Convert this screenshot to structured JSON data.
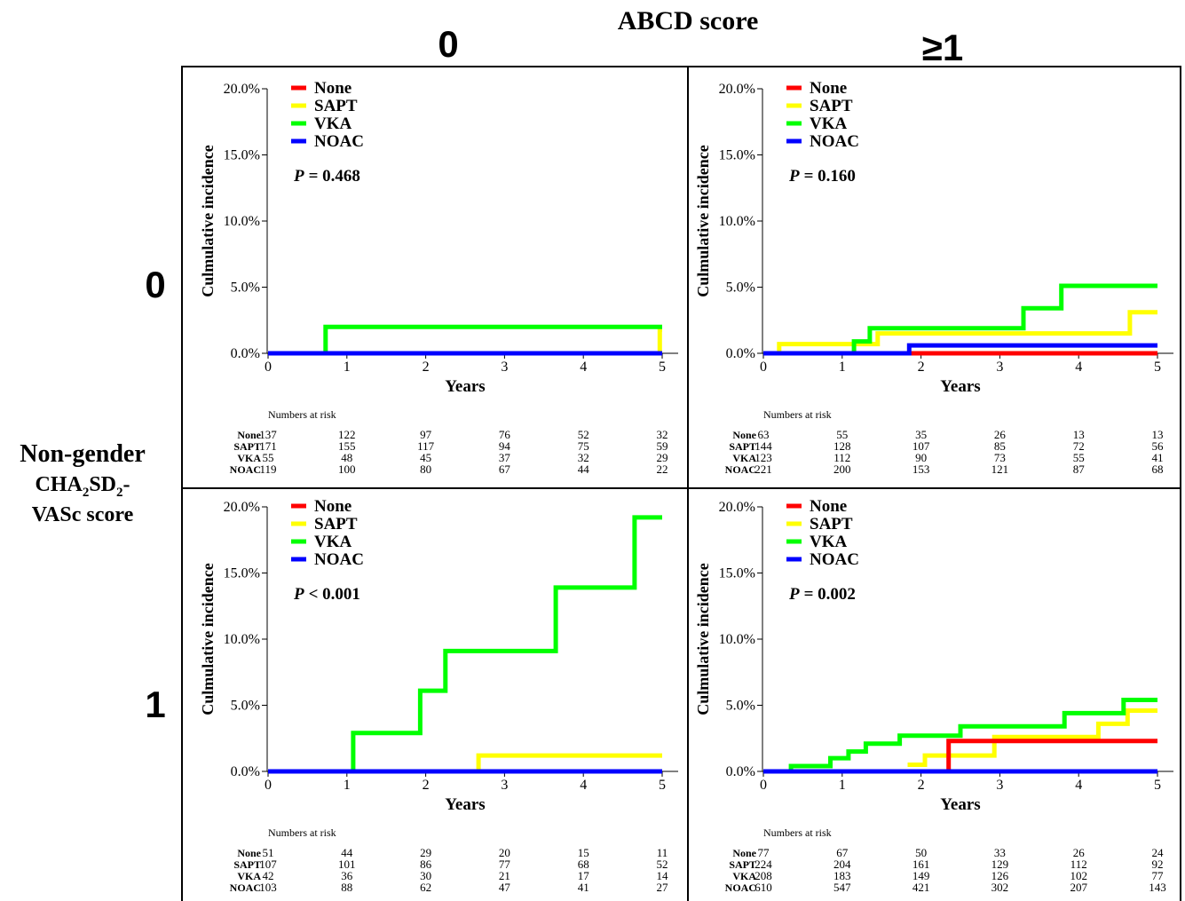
{
  "figure": {
    "column_header": "ABCD score",
    "column_labels": [
      "0",
      "≥1"
    ],
    "row_header_lines": [
      "Non-gender",
      "CHA2SD2-",
      "VASc score"
    ],
    "row_labels": [
      "0",
      "1"
    ]
  },
  "colors": {
    "None": "#ff0000",
    "SAPT": "#ffff00",
    "VKA": "#00ff00",
    "NOAC": "#0000ff"
  },
  "chart_data": [
    {
      "type": "line",
      "panel": "row 0, col 0",
      "xlabel": "Years",
      "ylabel": "Culmulative incidence",
      "xlim": [
        0,
        5
      ],
      "ylim": [
        0,
        20
      ],
      "xticks": [
        "0",
        "1",
        "2",
        "3",
        "4",
        "5"
      ],
      "yticks": [
        "0.0%",
        "5.0%",
        "10.0%",
        "15.0%",
        "20.0%"
      ],
      "pvalue": {
        "prefix": "P",
        "rest": "= 0.468"
      },
      "series": [
        {
          "name": "None",
          "points": [
            [
              0,
              0
            ],
            [
              5,
              0
            ]
          ]
        },
        {
          "name": "SAPT",
          "points": [
            [
              0,
              0
            ],
            [
              4.97,
              0
            ],
            [
              4.97,
              1.8
            ],
            [
              5,
              1.8
            ]
          ]
        },
        {
          "name": "VKA",
          "points": [
            [
              0,
              0
            ],
            [
              0.73,
              0
            ],
            [
              0.73,
              2.0
            ],
            [
              5,
              2.0
            ]
          ]
        },
        {
          "name": "NOAC",
          "points": [
            [
              0,
              0
            ],
            [
              5,
              0
            ]
          ]
        }
      ],
      "risk": {
        "title": "Numbers at risk",
        "rows": [
          {
            "label": "None",
            "values": [
              "137",
              "122",
              "97",
              "76",
              "52",
              "32"
            ]
          },
          {
            "label": "SAPT",
            "values": [
              "171",
              "155",
              "117",
              "94",
              "75",
              "59"
            ]
          },
          {
            "label": "VKA",
            "values": [
              "55",
              "48",
              "45",
              "37",
              "32",
              "29"
            ]
          },
          {
            "label": "NOAC",
            "values": [
              "119",
              "100",
              "80",
              "67",
              "44",
              "22"
            ]
          }
        ]
      }
    },
    {
      "type": "line",
      "panel": "row 0, col 1",
      "xlabel": "Years",
      "ylabel": "Culmulative incidence",
      "xlim": [
        0,
        5
      ],
      "ylim": [
        0,
        20
      ],
      "xticks": [
        "0",
        "1",
        "2",
        "3",
        "4",
        "5"
      ],
      "yticks": [
        "0.0%",
        "5.0%",
        "10.0%",
        "15.0%",
        "20.0%"
      ],
      "pvalue": {
        "prefix": "P",
        "rest": "= 0.160"
      },
      "series": [
        {
          "name": "None",
          "points": [
            [
              0,
              0
            ],
            [
              5,
              0
            ]
          ]
        },
        {
          "name": "SAPT",
          "points": [
            [
              0,
              0
            ],
            [
              0.2,
              0
            ],
            [
              0.2,
              0.7
            ],
            [
              1.45,
              0.7
            ],
            [
              1.45,
              1.5
            ],
            [
              4.65,
              1.5
            ],
            [
              4.65,
              3.1
            ],
            [
              5,
              3.1
            ]
          ]
        },
        {
          "name": "VKA",
          "points": [
            [
              0,
              0
            ],
            [
              1.15,
              0
            ],
            [
              1.15,
              0.9
            ],
            [
              1.35,
              0.9
            ],
            [
              1.35,
              1.9
            ],
            [
              3.3,
              1.9
            ],
            [
              3.3,
              3.4
            ],
            [
              3.78,
              3.4
            ],
            [
              3.78,
              5.1
            ],
            [
              5,
              5.1
            ]
          ]
        },
        {
          "name": "NOAC",
          "points": [
            [
              0,
              0
            ],
            [
              1.85,
              0
            ],
            [
              1.85,
              0.6
            ],
            [
              5,
              0.6
            ]
          ]
        }
      ],
      "risk": {
        "title": "Numbers at risk",
        "rows": [
          {
            "label": "None",
            "values": [
              "63",
              "55",
              "35",
              "26",
              "13",
              "13"
            ]
          },
          {
            "label": "SAPT",
            "values": [
              "144",
              "128",
              "107",
              "85",
              "72",
              "56"
            ]
          },
          {
            "label": "VKA",
            "values": [
              "123",
              "112",
              "90",
              "73",
              "55",
              "41"
            ]
          },
          {
            "label": "NOAC",
            "values": [
              "221",
              "200",
              "153",
              "121",
              "87",
              "68"
            ]
          }
        ]
      }
    },
    {
      "type": "line",
      "panel": "row 1, col 0",
      "xlabel": "Years",
      "ylabel": "Culmulative incidence",
      "xlim": [
        0,
        5
      ],
      "ylim": [
        0,
        20
      ],
      "xticks": [
        "0",
        "1",
        "2",
        "3",
        "4",
        "5"
      ],
      "yticks": [
        "0.0%",
        "5.0%",
        "10.0%",
        "15.0%",
        "20.0%"
      ],
      "pvalue": {
        "prefix": "P",
        "rest": "< 0.001"
      },
      "series": [
        {
          "name": "None",
          "points": [
            [
              0,
              0
            ],
            [
              5,
              0
            ]
          ]
        },
        {
          "name": "SAPT",
          "points": [
            [
              0,
              0
            ],
            [
              2.67,
              0
            ],
            [
              2.67,
              1.2
            ],
            [
              5,
              1.2
            ]
          ]
        },
        {
          "name": "VKA",
          "points": [
            [
              0,
              0
            ],
            [
              1.08,
              0
            ],
            [
              1.08,
              2.9
            ],
            [
              1.93,
              2.9
            ],
            [
              1.93,
              6.1
            ],
            [
              2.25,
              6.1
            ],
            [
              2.25,
              9.1
            ],
            [
              3.65,
              9.1
            ],
            [
              3.65,
              13.9
            ],
            [
              4.65,
              13.9
            ],
            [
              4.65,
              19.2
            ],
            [
              5,
              19.2
            ]
          ]
        },
        {
          "name": "NOAC",
          "points": [
            [
              0,
              0
            ],
            [
              5,
              0
            ]
          ]
        }
      ],
      "risk": {
        "title": "Numbers at risk",
        "rows": [
          {
            "label": "None",
            "values": [
              "51",
              "44",
              "29",
              "20",
              "15",
              "11"
            ]
          },
          {
            "label": "SAPT",
            "values": [
              "107",
              "101",
              "86",
              "77",
              "68",
              "52"
            ]
          },
          {
            "label": "VKA",
            "values": [
              "42",
              "36",
              "30",
              "21",
              "17",
              "14"
            ]
          },
          {
            "label": "NOAC",
            "values": [
              "103",
              "88",
              "62",
              "47",
              "41",
              "27"
            ]
          }
        ]
      }
    },
    {
      "type": "line",
      "panel": "row 1, col 1",
      "xlabel": "Years",
      "ylabel": "Culmulative incidence",
      "xlim": [
        0,
        5
      ],
      "ylim": [
        0,
        20
      ],
      "xticks": [
        "0",
        "1",
        "2",
        "3",
        "4",
        "5"
      ],
      "yticks": [
        "0.0%",
        "5.0%",
        "10.0%",
        "15.0%",
        "20.0%"
      ],
      "pvalue": {
        "prefix": "P",
        "rest": "= 0.002"
      },
      "series": [
        {
          "name": "None",
          "points": [
            [
              0,
              0
            ],
            [
              2.35,
              0
            ],
            [
              2.35,
              2.3
            ],
            [
              5,
              2.3
            ]
          ]
        },
        {
          "name": "SAPT",
          "points": [
            [
              1.83,
              0.5
            ],
            [
              2.05,
              0.5
            ],
            [
              2.05,
              1.2
            ],
            [
              2.93,
              1.2
            ],
            [
              2.93,
              2.6
            ],
            [
              4.25,
              2.6
            ],
            [
              4.25,
              3.6
            ],
            [
              4.62,
              3.6
            ],
            [
              4.62,
              4.6
            ],
            [
              5,
              4.6
            ]
          ]
        },
        {
          "name": "VKA",
          "points": [
            [
              0,
              0
            ],
            [
              0.35,
              0
            ],
            [
              0.35,
              0.4
            ],
            [
              0.85,
              0.4
            ],
            [
              0.85,
              1.0
            ],
            [
              1.08,
              1.0
            ],
            [
              1.08,
              1.5
            ],
            [
              1.3,
              1.5
            ],
            [
              1.3,
              2.1
            ],
            [
              1.73,
              2.1
            ],
            [
              1.73,
              2.7
            ],
            [
              2.5,
              2.7
            ],
            [
              2.5,
              3.4
            ],
            [
              3.82,
              3.4
            ],
            [
              3.82,
              4.4
            ],
            [
              4.57,
              4.4
            ],
            [
              4.57,
              5.4
            ],
            [
              5,
              5.4
            ]
          ]
        },
        {
          "name": "NOAC",
          "points": [
            [
              0,
              0
            ],
            [
              5,
              0
            ]
          ]
        }
      ],
      "risk": {
        "title": "Numbers at risk",
        "rows": [
          {
            "label": "None",
            "values": [
              "77",
              "67",
              "50",
              "33",
              "26",
              "24"
            ]
          },
          {
            "label": "SAPT",
            "values": [
              "224",
              "204",
              "161",
              "129",
              "112",
              "92"
            ]
          },
          {
            "label": "VKA",
            "values": [
              "208",
              "183",
              "149",
              "126",
              "102",
              "77"
            ]
          },
          {
            "label": "NOAC",
            "values": [
              "610",
              "547",
              "421",
              "302",
              "207",
              "143"
            ]
          }
        ]
      }
    }
  ]
}
